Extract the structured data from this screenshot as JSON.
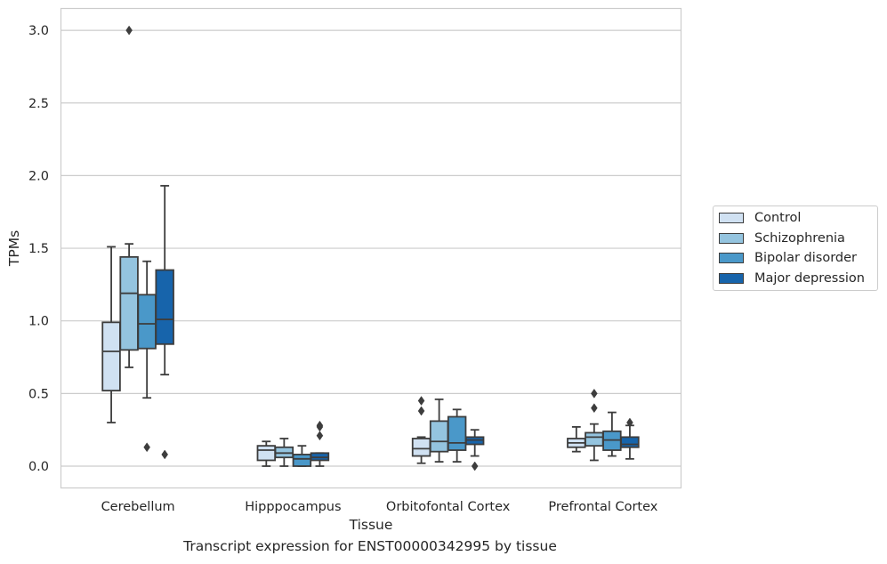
{
  "chart_data": {
    "type": "box",
    "title": "",
    "caption": "Transcript expression for ENST00000342995 by tissue",
    "xlabel": "Tissue",
    "ylabel": "TPMs",
    "ylim": [
      -0.15,
      3.15
    ],
    "yticks": [
      "0.0",
      "0.5",
      "1.0",
      "1.5",
      "2.0",
      "2.5",
      "3.0"
    ],
    "grid": "horizontal",
    "legend_position": "right",
    "categories": [
      "Cerebellum",
      "Hipppocampus",
      "Orbitofontal Cortex",
      "Prefrontal Cortex"
    ],
    "series": [
      {
        "name": "Control",
        "color": "#d0e1f2",
        "boxes": [
          {
            "whisker_low": 0.3,
            "q1": 0.52,
            "median": 0.79,
            "q3": 0.99,
            "whisker_high": 1.51,
            "outliers": []
          },
          {
            "whisker_low": 0.0,
            "q1": 0.04,
            "median": 0.11,
            "q3": 0.14,
            "whisker_high": 0.17,
            "outliers": []
          },
          {
            "whisker_low": 0.02,
            "q1": 0.07,
            "median": 0.12,
            "q3": 0.19,
            "whisker_high": 0.2,
            "outliers": [
              0.38,
              0.45
            ]
          },
          {
            "whisker_low": 0.1,
            "q1": 0.13,
            "median": 0.16,
            "q3": 0.19,
            "whisker_high": 0.27,
            "outliers": []
          }
        ]
      },
      {
        "name": "Schizophrenia",
        "color": "#94c4df",
        "boxes": [
          {
            "whisker_low": 0.68,
            "q1": 0.8,
            "median": 1.19,
            "q3": 1.44,
            "whisker_high": 1.53,
            "outliers": [
              3.0
            ]
          },
          {
            "whisker_low": 0.0,
            "q1": 0.06,
            "median": 0.09,
            "q3": 0.13,
            "whisker_high": 0.19,
            "outliers": []
          },
          {
            "whisker_low": 0.03,
            "q1": 0.1,
            "median": 0.17,
            "q3": 0.31,
            "whisker_high": 0.46,
            "outliers": []
          },
          {
            "whisker_low": 0.04,
            "q1": 0.14,
            "median": 0.2,
            "q3": 0.23,
            "whisker_high": 0.29,
            "outliers": [
              0.4,
              0.5
            ]
          }
        ]
      },
      {
        "name": "Bipolar disorder",
        "color": "#4a98c9",
        "boxes": [
          {
            "whisker_low": 0.47,
            "q1": 0.81,
            "median": 0.98,
            "q3": 1.18,
            "whisker_high": 1.41,
            "outliers": [
              0.13
            ]
          },
          {
            "whisker_low": 0.0,
            "q1": 0.0,
            "median": 0.05,
            "q3": 0.08,
            "whisker_high": 0.14,
            "outliers": []
          },
          {
            "whisker_low": 0.03,
            "q1": 0.11,
            "median": 0.16,
            "q3": 0.34,
            "whisker_high": 0.39,
            "outliers": []
          },
          {
            "whisker_low": 0.07,
            "q1": 0.11,
            "median": 0.18,
            "q3": 0.24,
            "whisker_high": 0.37,
            "outliers": []
          }
        ]
      },
      {
        "name": "Major depression",
        "color": "#1764ab",
        "boxes": [
          {
            "whisker_low": 0.63,
            "q1": 0.84,
            "median": 1.01,
            "q3": 1.35,
            "whisker_high": 1.93,
            "outliers": [
              0.08
            ]
          },
          {
            "whisker_low": 0.0,
            "q1": 0.04,
            "median": 0.06,
            "q3": 0.09,
            "whisker_high": 0.09,
            "outliers": [
              0.21,
              0.27,
              0.28
            ]
          },
          {
            "whisker_low": 0.07,
            "q1": 0.15,
            "median": 0.18,
            "q3": 0.2,
            "whisker_high": 0.25,
            "outliers": [
              0.0
            ]
          },
          {
            "whisker_low": 0.05,
            "q1": 0.13,
            "median": 0.15,
            "q3": 0.2,
            "whisker_high": 0.28,
            "outliers": [
              0.3
            ]
          }
        ]
      }
    ]
  }
}
